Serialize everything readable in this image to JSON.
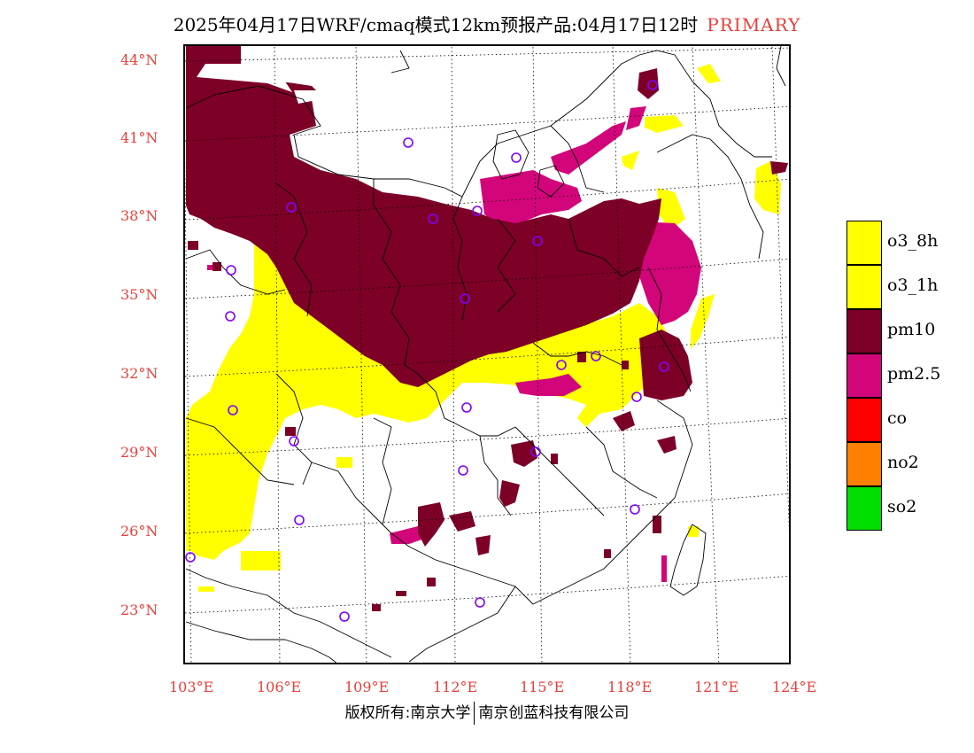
{
  "title": {
    "text": "2025年04月17日WRF/cmaq模式12km预报产品:04月17日12时",
    "tag": "PRIMARY",
    "tag_color": "#e8403a"
  },
  "map": {
    "lat_labels": [
      "44°N",
      "41°N",
      "38°N",
      "35°N",
      "32°N",
      "29°N",
      "26°N",
      "23°N"
    ],
    "lon_labels": [
      "103°E",
      "106°E",
      "109°E",
      "112°E",
      "115°E",
      "118°E",
      "121°E",
      "124°E"
    ],
    "label_color": "#e8403a"
  },
  "legend": [
    {
      "label": "o3_8h",
      "color": "#ffff00"
    },
    {
      "label": "o3_1h",
      "color": "#ffff00"
    },
    {
      "label": "pm10",
      "color": "#7d0027"
    },
    {
      "label": "pm2.5",
      "color": "#d3057a"
    },
    {
      "label": "co",
      "color": "#ff0000"
    },
    {
      "label": "no2",
      "color": "#ff7f00"
    },
    {
      "label": "so2",
      "color": "#00dd00"
    }
  ],
  "footer": {
    "left": "版权所有:南京大学",
    "right": "南京创蓝科技有限公司"
  }
}
